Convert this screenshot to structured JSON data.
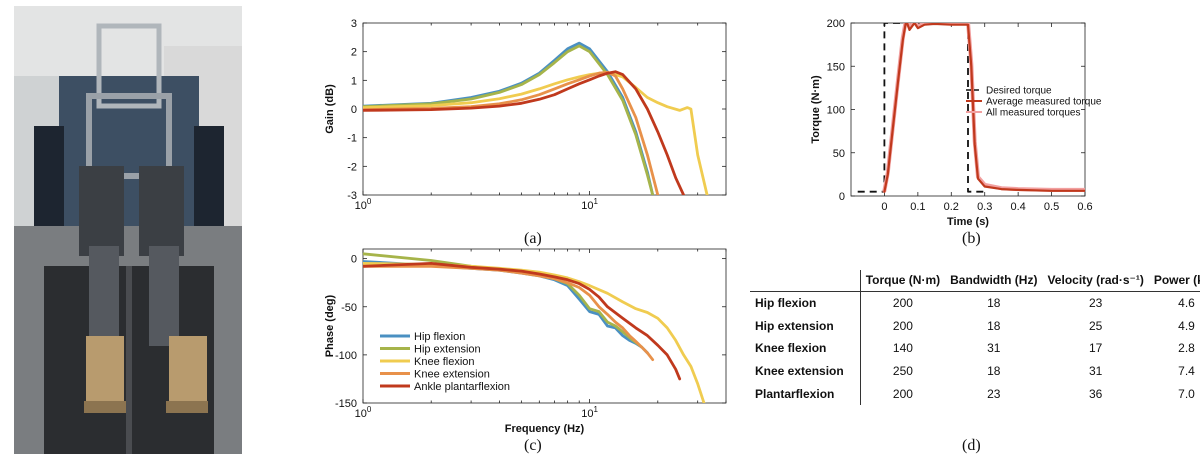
{
  "captions": {
    "a": "(a)",
    "b": "(b)",
    "c": "(c)",
    "d": "(d)"
  },
  "chart_data": [
    {
      "type": "line",
      "panel": "(a)",
      "xlabel": "",
      "ylabel": "Gain (dB)",
      "xscale": "log",
      "xlim": [
        1,
        40
      ],
      "ylim": [
        -3,
        3
      ],
      "xticks": [
        "10^0",
        "10^1"
      ],
      "yticks": [
        -3,
        -2,
        -1,
        0,
        1,
        2,
        3
      ],
      "grid": false,
      "series": [
        {
          "name": "Hip flexion",
          "color": "#4a90c2",
          "x": [
            1,
            2,
            3,
            4,
            5,
            6,
            7,
            8,
            9,
            10,
            12,
            14,
            16,
            18,
            19
          ],
          "y": [
            0.1,
            0.2,
            0.4,
            0.62,
            0.9,
            1.25,
            1.7,
            2.1,
            2.3,
            2.1,
            1.3,
            0.4,
            -0.8,
            -2.2,
            -3
          ]
        },
        {
          "name": "Hip extension",
          "color": "#a6b44a",
          "x": [
            1,
            2,
            3,
            4,
            5,
            6,
            7,
            8,
            9,
            10,
            12,
            14,
            16,
            18,
            19
          ],
          "y": [
            0.08,
            0.18,
            0.35,
            0.58,
            0.85,
            1.2,
            1.62,
            2.0,
            2.2,
            2.0,
            1.2,
            0.3,
            -0.9,
            -2.3,
            -3
          ]
        },
        {
          "name": "Knee flexion",
          "color": "#f0cc50",
          "x": [
            1,
            2,
            3,
            4,
            5,
            6,
            7,
            8,
            9,
            10,
            11,
            12,
            14,
            16,
            18,
            20,
            22,
            25,
            27,
            28,
            30,
            33
          ],
          "y": [
            0.05,
            0.12,
            0.22,
            0.36,
            0.52,
            0.7,
            0.88,
            1.02,
            1.12,
            1.2,
            1.25,
            1.28,
            1.12,
            0.75,
            0.4,
            0.22,
            0.08,
            -0.05,
            0.05,
            0,
            -1.6,
            -3
          ]
        },
        {
          "name": "Knee extension",
          "color": "#e8914a",
          "x": [
            1,
            2,
            3,
            4,
            5,
            6,
            7,
            8,
            9,
            10,
            11,
            12,
            13,
            14,
            16,
            18,
            20
          ],
          "y": [
            -0.02,
            0.02,
            0.08,
            0.18,
            0.32,
            0.5,
            0.7,
            0.88,
            1.02,
            1.15,
            1.25,
            1.28,
            1.15,
            0.7,
            -0.3,
            -1.6,
            -3
          ]
        },
        {
          "name": "Ankle plantarflexion",
          "color": "#c0391d",
          "x": [
            1,
            2,
            3,
            4,
            5,
            6,
            7,
            8,
            9,
            10,
            11,
            12,
            13,
            14,
            16,
            18,
            20,
            22,
            24,
            26
          ],
          "y": [
            -0.05,
            -0.02,
            0.03,
            0.1,
            0.2,
            0.34,
            0.5,
            0.7,
            0.88,
            1.02,
            1.15,
            1.25,
            1.3,
            1.2,
            0.7,
            0.0,
            -0.8,
            -1.6,
            -2.4,
            -3
          ]
        }
      ]
    },
    {
      "type": "line",
      "panel": "(b)",
      "xlabel": "Time (s)",
      "ylabel": "Torque (N·m)",
      "xlim": [
        -0.1,
        0.6
      ],
      "ylim": [
        0,
        200
      ],
      "xticks": [
        0,
        0.1,
        0.2,
        0.3,
        0.4,
        0.5,
        0.6
      ],
      "yticks": [
        0,
        50,
        100,
        150,
        200
      ],
      "grid": false,
      "legend": "center-right",
      "series": [
        {
          "name": "Desired torque",
          "color": "#111111",
          "style": "dashed",
          "x": [
            -0.08,
            0,
            0,
            0.25,
            0.25,
            0.3
          ],
          "y": [
            5,
            5,
            200,
            200,
            5,
            5
          ]
        },
        {
          "name": "Average measured torque",
          "color": "#c0391d",
          "x": [
            0,
            0.01,
            0.02,
            0.04,
            0.055,
            0.065,
            0.075,
            0.09,
            0.1,
            0.12,
            0.15,
            0.2,
            0.25,
            0.26,
            0.27,
            0.28,
            0.3,
            0.35,
            0.4,
            0.5,
            0.6
          ],
          "y": [
            5,
            25,
            60,
            130,
            180,
            203,
            192,
            200,
            194,
            198,
            199,
            198,
            198,
            150,
            60,
            20,
            11,
            8,
            7,
            6,
            6
          ]
        },
        {
          "name": "All measured torques",
          "color": "#f2a0a0",
          "x": [
            0,
            0.01,
            0.02,
            0.04,
            0.055,
            0.065,
            0.075,
            0.09,
            0.1,
            0.12,
            0.15,
            0.2,
            0.25,
            0.26,
            0.27,
            0.28,
            0.3,
            0.35,
            0.4,
            0.5,
            0.6
          ],
          "y": [
            6,
            27,
            62,
            132,
            183,
            205,
            195,
            202,
            196,
            200,
            201,
            200,
            201,
            153,
            63,
            22,
            13,
            9,
            8,
            7,
            7
          ]
        }
      ]
    },
    {
      "type": "line",
      "panel": "(c)",
      "xlabel": "Frequency (Hz)",
      "ylabel": "Phase (deg)",
      "xscale": "log",
      "xlim": [
        1,
        40
      ],
      "ylim": [
        -150,
        10
      ],
      "xticks": [
        "10^0",
        "10^1"
      ],
      "yticks": [
        0,
        -50,
        -100,
        -150
      ],
      "grid": false,
      "legend": "bottom-left",
      "series": [
        {
          "name": "Hip flexion",
          "color": "#4a90c2",
          "x": [
            1,
            2,
            3,
            4,
            5,
            6,
            7,
            8,
            9,
            10,
            11,
            12,
            13,
            14,
            15,
            16,
            17,
            18
          ],
          "y": [
            -3,
            -7,
            -10,
            -12,
            -15,
            -18,
            -22,
            -28,
            -42,
            -55,
            -58,
            -70,
            -72,
            -80,
            -85,
            -88,
            -92,
            -98
          ]
        },
        {
          "name": "Hip extension",
          "color": "#a6b44a",
          "x": [
            1,
            2,
            3,
            4,
            5,
            6,
            7,
            8,
            9,
            10,
            11,
            12,
            13,
            14,
            15,
            16,
            17
          ],
          "y": [
            5,
            -2,
            -8,
            -11,
            -14,
            -17,
            -21,
            -26,
            -38,
            -52,
            -55,
            -66,
            -70,
            -76,
            -82,
            -87,
            -92
          ]
        },
        {
          "name": "Knee flexion",
          "color": "#f0cc50",
          "x": [
            1,
            2,
            3,
            4,
            5,
            6,
            7,
            8,
            9,
            10,
            12,
            14,
            16,
            18,
            20,
            22,
            24,
            26,
            28,
            30,
            32
          ],
          "y": [
            -5,
            -6,
            -8,
            -10,
            -12,
            -14,
            -17,
            -20,
            -24,
            -28,
            -36,
            -45,
            -52,
            -56,
            -62,
            -72,
            -85,
            -100,
            -112,
            -130,
            -150
          ]
        },
        {
          "name": "Knee extension",
          "color": "#e8914a",
          "x": [
            1,
            2,
            3,
            4,
            5,
            6,
            7,
            8,
            9,
            10,
            11,
            12,
            13,
            14,
            15,
            16,
            17,
            18,
            19
          ],
          "y": [
            -8,
            -8,
            -10,
            -12,
            -15,
            -18,
            -21,
            -25,
            -30,
            -38,
            -50,
            -58,
            -66,
            -72,
            -80,
            -86,
            -92,
            -98,
            -105
          ]
        },
        {
          "name": "Ankle plantarflexion",
          "color": "#c0391d",
          "x": [
            1,
            2,
            3,
            4,
            5,
            6,
            7,
            8,
            9,
            10,
            11,
            12,
            14,
            16,
            18,
            20,
            22,
            24,
            25
          ],
          "y": [
            -8,
            -5,
            -9,
            -11,
            -13,
            -16,
            -19,
            -22,
            -26,
            -32,
            -40,
            -50,
            -62,
            -72,
            -80,
            -90,
            -100,
            -115,
            -125
          ]
        }
      ]
    }
  ],
  "table": {
    "headers": [
      "",
      "Torque (N·m)",
      "Bandwidth (Hz)",
      "Velocity (rad·s⁻¹)",
      "Power (kW)"
    ],
    "rows": [
      [
        "Hip flexion",
        "200",
        "18",
        "23",
        "4.6"
      ],
      [
        "Hip extension",
        "200",
        "18",
        "25",
        "4.9"
      ],
      [
        "Knee flexion",
        "140",
        "31",
        "17",
        "2.8"
      ],
      [
        "Knee extension",
        "250",
        "18",
        "31",
        "7.4"
      ],
      [
        "Plantarflexion",
        "200",
        "23",
        "36",
        "7.0"
      ]
    ]
  }
}
